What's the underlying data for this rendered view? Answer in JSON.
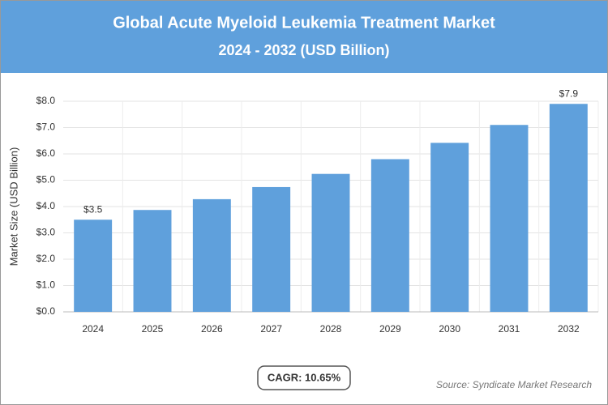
{
  "chart_data": {
    "type": "bar",
    "title": "Global Acute Myeloid Leukemia Treatment Market",
    "subtitle": "2024 - 2032 (USD Billion)",
    "y_label": "Market Size (USD Billion)",
    "categories": [
      "2024",
      "2025",
      "2026",
      "2027",
      "2028",
      "2029",
      "2030",
      "2031",
      "2032"
    ],
    "values": [
      3.5,
      3.87,
      4.28,
      4.74,
      5.24,
      5.8,
      6.42,
      7.1,
      7.9
    ],
    "value_labels": [
      "$3.5",
      null,
      null,
      null,
      null,
      null,
      null,
      null,
      "$7.9"
    ],
    "color": "#5fa0dc",
    "ylim": [
      0,
      8
    ],
    "yticks": [
      {
        "value": 0,
        "label": "$0.0"
      },
      {
        "value": 1,
        "label": "$1.0"
      },
      {
        "value": 2,
        "label": "$2.0"
      },
      {
        "value": 3,
        "label": "$3.0"
      },
      {
        "value": 4,
        "label": "$4.0"
      },
      {
        "value": 5,
        "label": "$5.0"
      },
      {
        "value": 6,
        "label": "$6.0"
      },
      {
        "value": 7,
        "label": "$7.0"
      },
      {
        "value": 8,
        "label": "$8.0"
      }
    ],
    "grid": true,
    "annotation": "CAGR: 10.65%",
    "source": "Source: Syndicate Market Research"
  }
}
